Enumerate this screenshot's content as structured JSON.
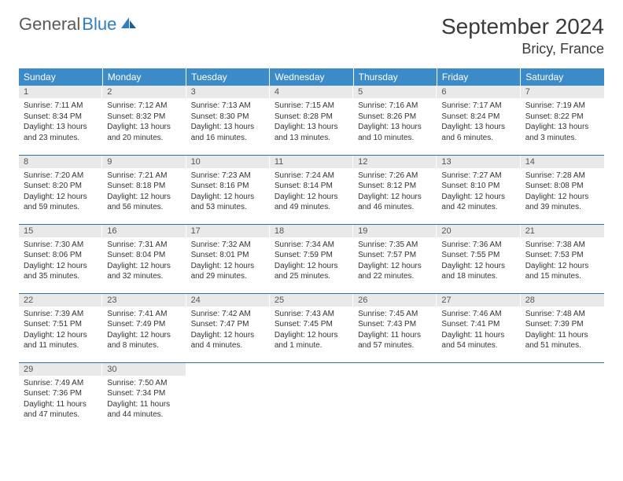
{
  "logo": {
    "word1": "General",
    "word2": "Blue"
  },
  "title": "September 2024",
  "location": "Bricy, France",
  "colors": {
    "header_bg": "#3b8bc9",
    "header_text": "#ffffff",
    "daynum_bg": "#e9e9e9",
    "row_border": "#2f6fa8",
    "logo_gray": "#5a5a5a",
    "logo_blue": "#2f7fc2"
  },
  "weekdays": [
    "Sunday",
    "Monday",
    "Tuesday",
    "Wednesday",
    "Thursday",
    "Friday",
    "Saturday"
  ],
  "weeks": [
    [
      {
        "n": "1",
        "sr": "Sunrise: 7:11 AM",
        "ss": "Sunset: 8:34 PM",
        "dl": "Daylight: 13 hours and 23 minutes."
      },
      {
        "n": "2",
        "sr": "Sunrise: 7:12 AM",
        "ss": "Sunset: 8:32 PM",
        "dl": "Daylight: 13 hours and 20 minutes."
      },
      {
        "n": "3",
        "sr": "Sunrise: 7:13 AM",
        "ss": "Sunset: 8:30 PM",
        "dl": "Daylight: 13 hours and 16 minutes."
      },
      {
        "n": "4",
        "sr": "Sunrise: 7:15 AM",
        "ss": "Sunset: 8:28 PM",
        "dl": "Daylight: 13 hours and 13 minutes."
      },
      {
        "n": "5",
        "sr": "Sunrise: 7:16 AM",
        "ss": "Sunset: 8:26 PM",
        "dl": "Daylight: 13 hours and 10 minutes."
      },
      {
        "n": "6",
        "sr": "Sunrise: 7:17 AM",
        "ss": "Sunset: 8:24 PM",
        "dl": "Daylight: 13 hours and 6 minutes."
      },
      {
        "n": "7",
        "sr": "Sunrise: 7:19 AM",
        "ss": "Sunset: 8:22 PM",
        "dl": "Daylight: 13 hours and 3 minutes."
      }
    ],
    [
      {
        "n": "8",
        "sr": "Sunrise: 7:20 AM",
        "ss": "Sunset: 8:20 PM",
        "dl": "Daylight: 12 hours and 59 minutes."
      },
      {
        "n": "9",
        "sr": "Sunrise: 7:21 AM",
        "ss": "Sunset: 8:18 PM",
        "dl": "Daylight: 12 hours and 56 minutes."
      },
      {
        "n": "10",
        "sr": "Sunrise: 7:23 AM",
        "ss": "Sunset: 8:16 PM",
        "dl": "Daylight: 12 hours and 53 minutes."
      },
      {
        "n": "11",
        "sr": "Sunrise: 7:24 AM",
        "ss": "Sunset: 8:14 PM",
        "dl": "Daylight: 12 hours and 49 minutes."
      },
      {
        "n": "12",
        "sr": "Sunrise: 7:26 AM",
        "ss": "Sunset: 8:12 PM",
        "dl": "Daylight: 12 hours and 46 minutes."
      },
      {
        "n": "13",
        "sr": "Sunrise: 7:27 AM",
        "ss": "Sunset: 8:10 PM",
        "dl": "Daylight: 12 hours and 42 minutes."
      },
      {
        "n": "14",
        "sr": "Sunrise: 7:28 AM",
        "ss": "Sunset: 8:08 PM",
        "dl": "Daylight: 12 hours and 39 minutes."
      }
    ],
    [
      {
        "n": "15",
        "sr": "Sunrise: 7:30 AM",
        "ss": "Sunset: 8:06 PM",
        "dl": "Daylight: 12 hours and 35 minutes."
      },
      {
        "n": "16",
        "sr": "Sunrise: 7:31 AM",
        "ss": "Sunset: 8:04 PM",
        "dl": "Daylight: 12 hours and 32 minutes."
      },
      {
        "n": "17",
        "sr": "Sunrise: 7:32 AM",
        "ss": "Sunset: 8:01 PM",
        "dl": "Daylight: 12 hours and 29 minutes."
      },
      {
        "n": "18",
        "sr": "Sunrise: 7:34 AM",
        "ss": "Sunset: 7:59 PM",
        "dl": "Daylight: 12 hours and 25 minutes."
      },
      {
        "n": "19",
        "sr": "Sunrise: 7:35 AM",
        "ss": "Sunset: 7:57 PM",
        "dl": "Daylight: 12 hours and 22 minutes."
      },
      {
        "n": "20",
        "sr": "Sunrise: 7:36 AM",
        "ss": "Sunset: 7:55 PM",
        "dl": "Daylight: 12 hours and 18 minutes."
      },
      {
        "n": "21",
        "sr": "Sunrise: 7:38 AM",
        "ss": "Sunset: 7:53 PM",
        "dl": "Daylight: 12 hours and 15 minutes."
      }
    ],
    [
      {
        "n": "22",
        "sr": "Sunrise: 7:39 AM",
        "ss": "Sunset: 7:51 PM",
        "dl": "Daylight: 12 hours and 11 minutes."
      },
      {
        "n": "23",
        "sr": "Sunrise: 7:41 AM",
        "ss": "Sunset: 7:49 PM",
        "dl": "Daylight: 12 hours and 8 minutes."
      },
      {
        "n": "24",
        "sr": "Sunrise: 7:42 AM",
        "ss": "Sunset: 7:47 PM",
        "dl": "Daylight: 12 hours and 4 minutes."
      },
      {
        "n": "25",
        "sr": "Sunrise: 7:43 AM",
        "ss": "Sunset: 7:45 PM",
        "dl": "Daylight: 12 hours and 1 minute."
      },
      {
        "n": "26",
        "sr": "Sunrise: 7:45 AM",
        "ss": "Sunset: 7:43 PM",
        "dl": "Daylight: 11 hours and 57 minutes."
      },
      {
        "n": "27",
        "sr": "Sunrise: 7:46 AM",
        "ss": "Sunset: 7:41 PM",
        "dl": "Daylight: 11 hours and 54 minutes."
      },
      {
        "n": "28",
        "sr": "Sunrise: 7:48 AM",
        "ss": "Sunset: 7:39 PM",
        "dl": "Daylight: 11 hours and 51 minutes."
      }
    ],
    [
      {
        "n": "29",
        "sr": "Sunrise: 7:49 AM",
        "ss": "Sunset: 7:36 PM",
        "dl": "Daylight: 11 hours and 47 minutes."
      },
      {
        "n": "30",
        "sr": "Sunrise: 7:50 AM",
        "ss": "Sunset: 7:34 PM",
        "dl": "Daylight: 11 hours and 44 minutes."
      },
      null,
      null,
      null,
      null,
      null
    ]
  ]
}
